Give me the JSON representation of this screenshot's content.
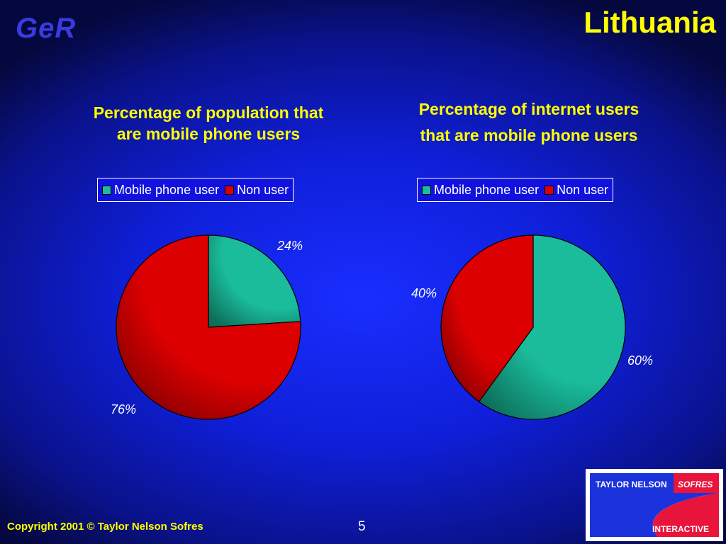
{
  "header": {
    "logo": "GeR",
    "title": "Lithuania"
  },
  "colors": {
    "mobile": "#1abc9c",
    "non_user": "#dd0000",
    "title": "#ffff00"
  },
  "legend_labels": [
    "Mobile phone user",
    "Non user"
  ],
  "chart_data": [
    {
      "type": "pie",
      "title": "Percentage of population that are mobile phone users",
      "title_lines": [
        "Percentage of population that",
        "are mobile phone users"
      ],
      "categories": [
        "Mobile phone user",
        "Non user"
      ],
      "values": [
        24,
        76
      ],
      "labels": [
        "24%",
        "76%"
      ],
      "legend": "top"
    },
    {
      "type": "pie",
      "title": "Percentage of internet users that are mobile phone users",
      "title_lines": [
        "Percentage of internet users",
        "that are mobile phone users"
      ],
      "categories": [
        "Mobile phone user",
        "Non user"
      ],
      "values": [
        60,
        40
      ],
      "labels": [
        "60%",
        "40%"
      ],
      "legend": "top"
    }
  ],
  "footer": {
    "copyright": "Copyright 2001 © Taylor Nelson Sofres",
    "page": "5"
  },
  "logo_tns": {
    "line1": "TAYLOR NELSON",
    "line2": "SOFRES",
    "line3": "INTERACTIVE"
  }
}
